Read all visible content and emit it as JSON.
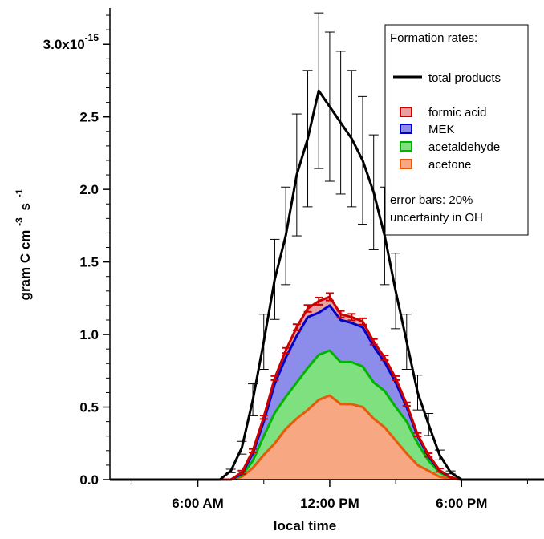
{
  "chart_data": {
    "type": "area",
    "title": "",
    "xlabel": "local time",
    "ylabel": "gram C cm",
    "ylabel_sup1": "-3",
    "ylabel_mid": "s",
    "ylabel_sup2": "-1",
    "x_tick_labels": [
      "6:00 AM",
      "12:00 PM",
      "6:00 PM"
    ],
    "y_tick_labels": [
      "0.0",
      "0.5",
      "1.0",
      "1.5",
      "2.0",
      "2.5",
      "3.0x10"
    ],
    "y_top_exponent": "-15",
    "x_unit": "hour of day",
    "xlim": [
      2.0,
      21.75
    ],
    "ylim": [
      0,
      3.25
    ],
    "y_scale_factor": 1e-15,
    "grid": false,
    "legend_position": "top-right",
    "legend": {
      "header": "Formation rates:",
      "line_entry": "total products",
      "area_entries": [
        "formic acid",
        "MEK",
        "acetaldehyde",
        "acetone"
      ],
      "note_line1": "error bars: 20%",
      "note_line2": "uncertainty in OH"
    },
    "colors": {
      "formic_acid_fill": "#e8a1a3",
      "formic_acid_line": "#cc0000",
      "MEK_fill": "#8c8ceb",
      "MEK_line": "#0000c8",
      "acetaldehyde_fill": "#7ee07e",
      "acetaldehyde_line": "#00b400",
      "acetone_fill": "#f7a883",
      "acetone_line": "#e8590a",
      "total_line": "#000000"
    },
    "x": [
      2,
      3,
      4,
      5,
      6,
      7,
      7.5,
      8,
      8.5,
      9,
      9.5,
      10,
      10.5,
      11,
      11.5,
      12,
      12.5,
      13,
      13.5,
      14,
      14.5,
      15,
      15.5,
      16,
      16.5,
      17,
      17.5,
      18,
      18.5,
      19,
      20,
      21,
      21.75
    ],
    "series": [
      {
        "name": "total products",
        "kind": "line",
        "values": [
          0,
          0,
          0,
          0,
          0,
          0,
          0.06,
          0.22,
          0.55,
          0.95,
          1.38,
          1.68,
          2.1,
          2.35,
          2.68,
          2.57,
          2.46,
          2.35,
          2.2,
          1.98,
          1.68,
          1.3,
          0.95,
          0.6,
          0.38,
          0.17,
          0.05,
          0,
          0,
          0,
          0,
          0,
          0
        ],
        "error_bar_fraction": 0.2
      },
      {
        "name": "acetone",
        "kind": "stacked-area",
        "values": [
          0,
          0,
          0,
          0,
          0,
          0,
          0,
          0.02,
          0.08,
          0.17,
          0.25,
          0.35,
          0.42,
          0.48,
          0.55,
          0.58,
          0.52,
          0.52,
          0.5,
          0.42,
          0.36,
          0.27,
          0.18,
          0.1,
          0.06,
          0.02,
          0.005,
          0,
          0,
          0,
          0,
          0,
          0
        ]
      },
      {
        "name": "acetaldehyde",
        "kind": "stacked-area",
        "values": [
          0,
          0,
          0,
          0,
          0,
          0,
          0,
          0.01,
          0.05,
          0.13,
          0.21,
          0.22,
          0.25,
          0.29,
          0.31,
          0.31,
          0.29,
          0.29,
          0.28,
          0.25,
          0.25,
          0.23,
          0.22,
          0.15,
          0.07,
          0.03,
          0.01,
          0,
          0,
          0,
          0,
          0,
          0
        ]
      },
      {
        "name": "MEK",
        "kind": "stacked-area",
        "values": [
          0,
          0,
          0,
          0,
          0,
          0,
          0,
          0.01,
          0.05,
          0.1,
          0.2,
          0.27,
          0.32,
          0.35,
          0.29,
          0.31,
          0.29,
          0.27,
          0.27,
          0.25,
          0.2,
          0.17,
          0.1,
          0.05,
          0.03,
          0.01,
          0,
          0,
          0,
          0,
          0,
          0,
          0
        ]
      },
      {
        "name": "formic acid",
        "kind": "stacked-area",
        "values": [
          0,
          0,
          0,
          0,
          0,
          0,
          0,
          0.01,
          0.02,
          0.03,
          0.04,
          0.05,
          0.06,
          0.06,
          0.08,
          0.06,
          0.04,
          0.04,
          0.04,
          0.03,
          0.03,
          0.03,
          0.02,
          0.01,
          0.01,
          0.005,
          0,
          0,
          0,
          0,
          0,
          0,
          0
        ],
        "error_bar_fraction": 0.02
      }
    ]
  }
}
